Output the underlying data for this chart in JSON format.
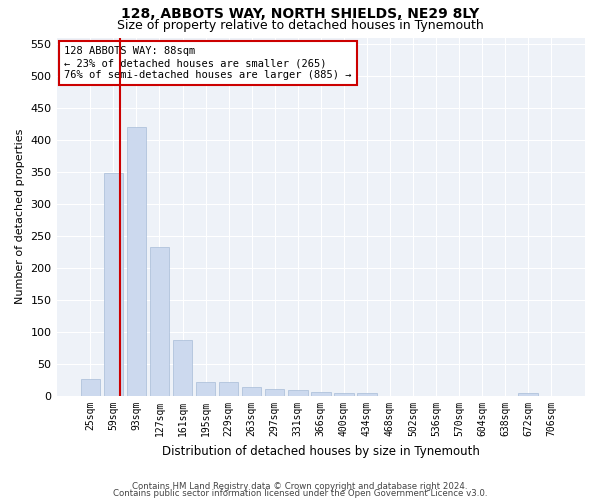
{
  "title1": "128, ABBOTS WAY, NORTH SHIELDS, NE29 8LY",
  "title2": "Size of property relative to detached houses in Tynemouth",
  "xlabel": "Distribution of detached houses by size in Tynemouth",
  "ylabel": "Number of detached properties",
  "bar_color": "#ccd9ee",
  "bar_edge_color": "#a8bcd8",
  "highlight_color": "#cc0000",
  "annotation_line1": "128 ABBOTS WAY: 88sqm",
  "annotation_line2": "← 23% of detached houses are smaller (265)",
  "annotation_line3": "76% of semi-detached houses are larger (885) →",
  "annotation_box_color": "white",
  "annotation_box_edge": "#cc0000",
  "categories": [
    "25sqm",
    "59sqm",
    "93sqm",
    "127sqm",
    "161sqm",
    "195sqm",
    "229sqm",
    "263sqm",
    "297sqm",
    "331sqm",
    "366sqm",
    "400sqm",
    "434sqm",
    "468sqm",
    "502sqm",
    "536sqm",
    "570sqm",
    "604sqm",
    "638sqm",
    "672sqm",
    "706sqm"
  ],
  "values": [
    27,
    348,
    420,
    233,
    88,
    22,
    22,
    14,
    11,
    10,
    6,
    5,
    5,
    0,
    0,
    0,
    0,
    0,
    0,
    5,
    0
  ],
  "ylim": [
    0,
    560
  ],
  "yticks": [
    0,
    50,
    100,
    150,
    200,
    250,
    300,
    350,
    400,
    450,
    500,
    550
  ],
  "footer1": "Contains HM Land Registry data © Crown copyright and database right 2024.",
  "footer2": "Contains public sector information licensed under the Open Government Licence v3.0.",
  "background_color": "#eef2f8"
}
